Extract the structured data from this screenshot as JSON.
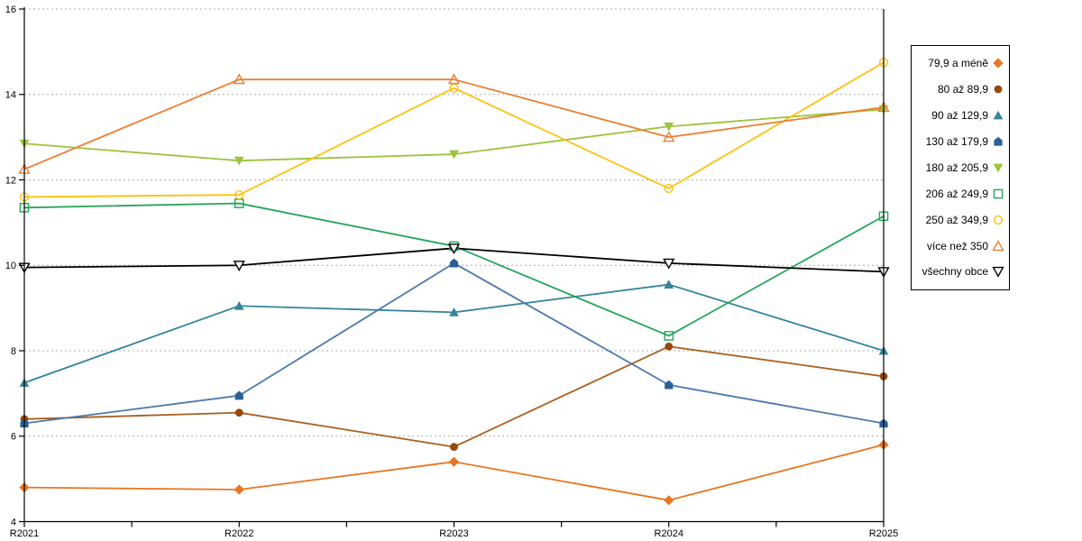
{
  "chart_data": {
    "type": "line",
    "title": "",
    "xlabel": "",
    "ylabel": "",
    "categories": [
      "R2021",
      "R2022",
      "R2023",
      "R2024",
      "R2025"
    ],
    "ylim": [
      4,
      16
    ],
    "y_ticks": [
      4,
      6,
      8,
      10,
      12,
      14,
      16
    ],
    "grid": "horizontal-dotted",
    "legend_position": "right-outside",
    "series": [
      {
        "name": "79,9 a méně",
        "marker": "diamond",
        "fill": "solid",
        "color": "#E9751E",
        "values": [
          4.8,
          4.75,
          5.4,
          4.5,
          5.8
        ]
      },
      {
        "name": "80 až 89,9",
        "marker": "circle",
        "fill": "solid",
        "color": "#A9601F",
        "marker_color": "#954A0D",
        "values": [
          6.4,
          6.55,
          5.75,
          8.1,
          7.4
        ]
      },
      {
        "name": "90 až 129,9",
        "marker": "triangle-up",
        "fill": "solid",
        "color": "#35849B",
        "values": [
          7.25,
          9.05,
          8.9,
          9.55,
          8.0
        ]
      },
      {
        "name": "130 až 179,9",
        "marker": "pentagon",
        "fill": "solid",
        "color": "#4B79AE",
        "marker_color": "#2C5F94",
        "values": [
          6.3,
          6.95,
          10.05,
          7.2,
          6.3
        ]
      },
      {
        "name": "180 až 205,9",
        "marker": "triangle-down",
        "fill": "solid",
        "color": "#9AC43C",
        "values": [
          12.85,
          12.45,
          12.6,
          13.25,
          13.65
        ]
      },
      {
        "name": "206 až 249,9",
        "marker": "square-open",
        "fill": "open",
        "color": "#25A55B",
        "values": [
          11.35,
          11.45,
          10.45,
          8.35,
          11.15
        ]
      },
      {
        "name": "250 až 349,9",
        "marker": "circle-open",
        "fill": "open",
        "color": "#FFC110",
        "values": [
          11.6,
          11.65,
          14.15,
          11.8,
          14.75
        ]
      },
      {
        "name": "více než 350",
        "marker": "triangle-up-open",
        "fill": "open",
        "color": "#EE7E30",
        "values": [
          12.25,
          14.35,
          14.35,
          13.0,
          13.7
        ]
      },
      {
        "name": "všechny obce",
        "marker": "triangle-down-open",
        "fill": "open-white",
        "color": "#000000",
        "values": [
          9.95,
          10.0,
          10.4,
          10.05,
          9.85
        ]
      }
    ]
  },
  "colors": {
    "background": "#FFFFFF",
    "axis": "#000000",
    "gridline": "#ADADAD",
    "legend_border": "#000000"
  }
}
